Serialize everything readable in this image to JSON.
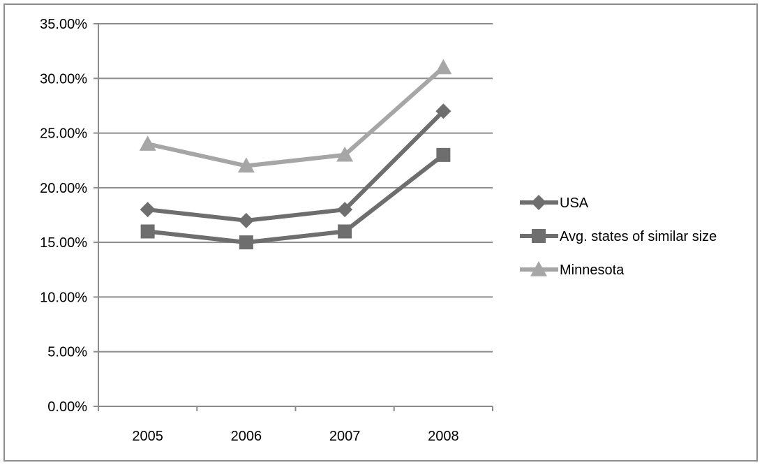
{
  "chart_data": {
    "type": "line",
    "categories": [
      "2005",
      "2006",
      "2007",
      "2008"
    ],
    "ylim": [
      0,
      0.35
    ],
    "yticks": [
      0,
      0.05,
      0.1,
      0.15,
      0.2,
      0.25,
      0.3,
      0.35
    ],
    "ytick_labels": [
      "0.00%",
      "5.00%",
      "10.00%",
      "15.00%",
      "20.00%",
      "25.00%",
      "30.00%",
      "35.00%"
    ],
    "grid": true,
    "legend_position": "right",
    "series": [
      {
        "name": "USA",
        "values": [
          0.18,
          0.17,
          0.18,
          0.27
        ],
        "color": "#6e6e6e",
        "marker": "diamond"
      },
      {
        "name": "Avg. states of similar size",
        "values": [
          0.16,
          0.15,
          0.16,
          0.23
        ],
        "color": "#6e6e6e",
        "marker": "square"
      },
      {
        "name": "Minnesota",
        "values": [
          0.24,
          0.22,
          0.23,
          0.31
        ],
        "color": "#a6a6a6",
        "marker": "triangle"
      }
    ]
  }
}
